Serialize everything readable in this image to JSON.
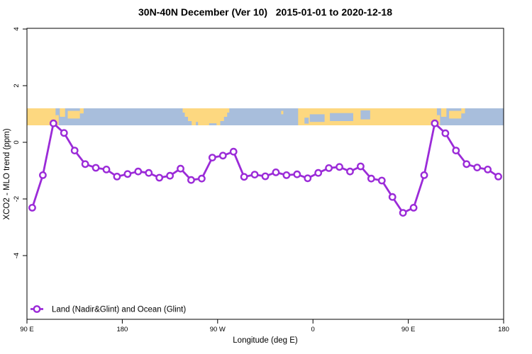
{
  "title": "30N-40N December (Ver 10)   2015-01-01 to 2020-12-18",
  "legend": {
    "label": "Land (Nadir&Glint) and Ocean (Glint)"
  },
  "colors": {
    "series_line": "#9B2BD8",
    "band_land": "#FDD880",
    "band_ocean": "#A8BEDC",
    "axis": "#000000"
  },
  "chart_data": {
    "type": "line",
    "title": "30N-40N December (Ver 10)   2015-01-01 to 2020-12-18",
    "xlabel": "Longitude (deg E)",
    "ylabel": "XCO2 - MLO trend (ppm)",
    "grid": false,
    "legend_position": "bottom-left-inside",
    "xlim": [
      90,
      540
    ],
    "ylim": [
      -6.25,
      4.025
    ],
    "x_ticks": {
      "positions": [
        90,
        180,
        270,
        360,
        450,
        540
      ],
      "labels": [
        "90 E",
        "180",
        "90 W",
        "0",
        "90 E",
        "180"
      ]
    },
    "y_ticks": {
      "positions": [
        4,
        2,
        0,
        -2,
        -4
      ],
      "labels": [
        "4",
        "2",
        "0",
        "-2",
        "-4"
      ]
    },
    "series": [
      {
        "name": "Land (Nadir&Glint) and Ocean (Glint)",
        "color": "#9B2BD8",
        "marker": "open-circle",
        "x": [
          95,
          105,
          115,
          125,
          135,
          145,
          155,
          165,
          175,
          185,
          195,
          205,
          215,
          225,
          235,
          245,
          255,
          265,
          275,
          285,
          295,
          305,
          315,
          325,
          335,
          345,
          355,
          365,
          375,
          385,
          395,
          405,
          415,
          425,
          435,
          445,
          455,
          465,
          475,
          485,
          495,
          505,
          515,
          525,
          535
        ],
        "y": [
          -2.31,
          -1.16,
          0.67,
          0.33,
          -0.29,
          -0.77,
          -0.9,
          -0.96,
          -1.21,
          -1.12,
          -1.03,
          -1.08,
          -1.25,
          -1.18,
          -0.93,
          -1.33,
          -1.28,
          -0.54,
          -0.47,
          -0.33,
          -1.22,
          -1.14,
          -1.2,
          -1.06,
          -1.16,
          -1.13,
          -1.27,
          -1.08,
          -0.91,
          -0.87,
          -1.03,
          -0.85,
          -1.28,
          -1.35,
          -1.93,
          -2.49,
          -2.31,
          -1.16,
          0.67,
          0.32,
          -0.29,
          -0.77,
          -0.89,
          -0.96,
          -1.21
        ]
      }
    ],
    "map_band": {
      "description": "world map strip of the 30N-40N latitude band, longitudes wrap 90E to 180 twice",
      "value_top": 1.2,
      "value_bottom": 0.6,
      "ocean_color": "#A8BEDC",
      "land_color": "#FDD880",
      "land_patches": [
        [
          90,
          117,
          0,
          1
        ],
        [
          117,
          120,
          0.4,
          1
        ],
        [
          121,
          126,
          0,
          0.5
        ],
        [
          128.5,
          140,
          0.15,
          0.6
        ],
        [
          140,
          143.5,
          0,
          0.3
        ],
        [
          237,
          281,
          0,
          0.25
        ],
        [
          239,
          279,
          0.25,
          0.5
        ],
        [
          242,
          276,
          0.5,
          0.75
        ],
        [
          245.5,
          272.5,
          0.75,
          1
        ],
        [
          330,
          332,
          0.15,
          0.35
        ],
        [
          346,
          477,
          0,
          1
        ],
        [
          477,
          480,
          0.4,
          1
        ],
        [
          481,
          486,
          0,
          0.5
        ],
        [
          488.5,
          500,
          0.15,
          0.6
        ],
        [
          500,
          503.5,
          0,
          0.3
        ]
      ],
      "water_patches": [
        [
          249.5,
          251.5,
          0.8,
          1
        ],
        [
          262,
          269,
          0.88,
          1
        ],
        [
          352,
          356,
          0.55,
          0.9
        ],
        [
          357,
          371,
          0.35,
          0.8
        ],
        [
          376,
          398,
          0.28,
          0.75
        ],
        [
          405,
          414,
          0.12,
          0.65
        ]
      ]
    }
  }
}
